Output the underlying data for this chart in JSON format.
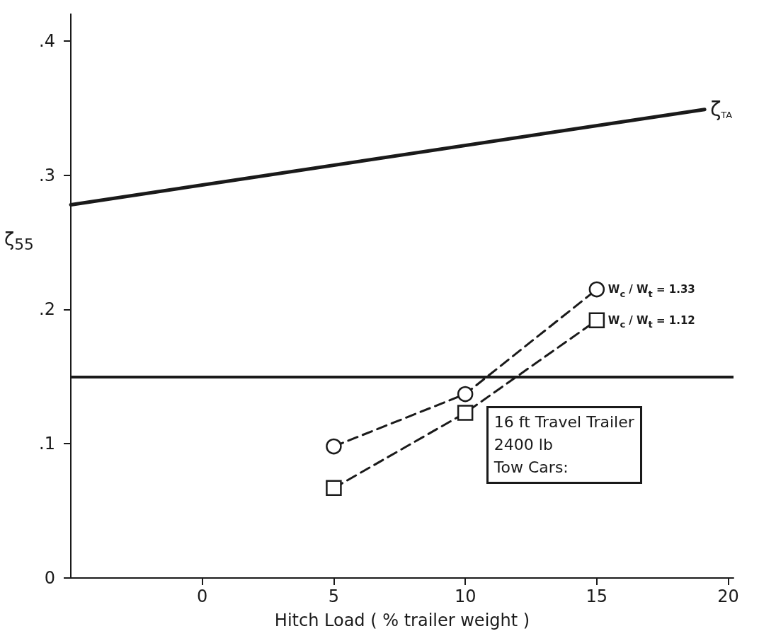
{
  "chart_data": {
    "type": "line",
    "xlabel": "Hitch Load ( % trailer weight )",
    "ylabel": "ζ$_{55}$",
    "xlim": [
      -5,
      20.2
    ],
    "xticks": [
      0,
      5,
      10,
      15,
      20
    ],
    "ylim": [
      0,
      0.42
    ],
    "yticks": [
      {
        "value": 0,
        "label": "0"
      },
      {
        "value": 0.1,
        "label": ".1"
      },
      {
        "value": 0.2,
        "label": ".2"
      },
      {
        "value": 0.3,
        "label": ".3"
      },
      {
        "value": 0.4,
        "label": ".4"
      }
    ],
    "grid": false,
    "legend": false,
    "series": [
      {
        "name": "ζ$_{TA}$",
        "color": "#1a1a1a",
        "x": [
          -5,
          19.1
        ],
        "values": [
          0.278,
          0.349
        ],
        "marker": "none",
        "line_style": "solid"
      },
      {
        "name": "W$_{c}$ / W$_{t}$ = 1.33",
        "color": "#1a1a1a",
        "x": [
          5,
          10,
          15
        ],
        "values": [
          0.098,
          0.137,
          0.215
        ],
        "marker": "circle",
        "line_style": "dashed"
      },
      {
        "name": "W$_{c}$ / W$_{t}$ = 1.12",
        "color": "#1a1a1a",
        "x": [
          5,
          10,
          15
        ],
        "values": [
          0.067,
          0.123,
          0.192
        ],
        "marker": "square",
        "line_style": "dashed"
      }
    ],
    "ref_lines": [
      {
        "axis": "y",
        "value": 0.15,
        "color": "#1a1a1a",
        "line_style": "solid"
      }
    ],
    "annotations": [
      "16 ft Travel Trailer",
      "2400 lb",
      "Tow Cars:"
    ]
  }
}
